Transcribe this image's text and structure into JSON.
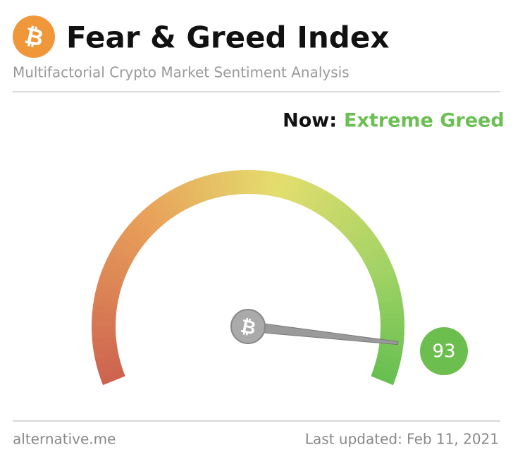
{
  "header": {
    "title": "Fear & Greed Index",
    "subtitle": "Multifactorial Crypto Market Sentiment Analysis"
  },
  "status": {
    "label": "Now:",
    "value": "Extreme Greed"
  },
  "gauge": {
    "value": 93,
    "lim": [
      0,
      100
    ]
  },
  "footer": {
    "source": "alternative.me",
    "updated": "Last updated: Feb 11, 2021"
  }
}
